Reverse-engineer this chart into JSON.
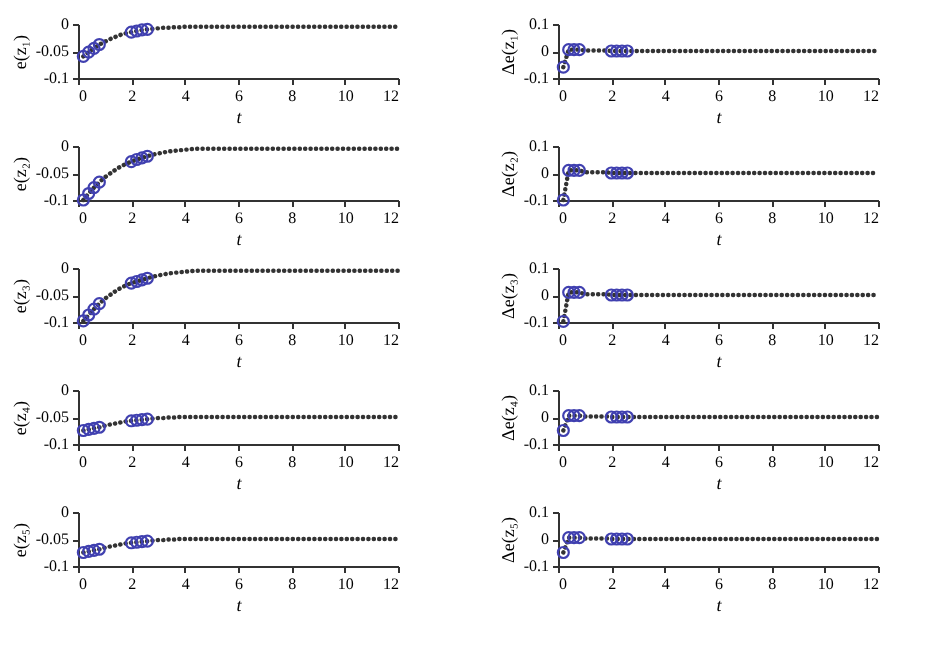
{
  "chart_data": [
    {
      "type": "line",
      "xlabel": "t",
      "ylabel": "e(z₁)",
      "xlim": [
        0,
        12
      ],
      "xticks": [
        0,
        2,
        4,
        6,
        8,
        10,
        12
      ],
      "ylim": [
        -0.1,
        0
      ],
      "yticks": [
        -0.1,
        -0.05,
        0
      ],
      "grid": false,
      "x": [
        0.2,
        0.4,
        0.6,
        0.8,
        1,
        1.2,
        1.4,
        1.6,
        1.8,
        2,
        2.2,
        2.4,
        2.6,
        2.8,
        3,
        3.2,
        3.4,
        3.6,
        3.8,
        4,
        4.2,
        4.4,
        4.6,
        4.8,
        5,
        5.2,
        5.4,
        5.6,
        5.8,
        6,
        6.2,
        6.4,
        6.6,
        6.8,
        7,
        7.2,
        7.4,
        7.6,
        7.8,
        8,
        8.2,
        8.4,
        8.6,
        8.8,
        9,
        9.2,
        9.4,
        9.6,
        9.8,
        10,
        10.2,
        10.4,
        10.6,
        10.8,
        11,
        11.2,
        11.4,
        11.6,
        11.8,
        12
      ],
      "series": [
        {
          "color": "#333333",
          "line_style": "dotted",
          "values": [
            -0.06,
            -0.052,
            -0.045,
            -0.038,
            -0.033,
            -0.028,
            -0.024,
            -0.02,
            -0.017,
            -0.015,
            -0.013,
            -0.011,
            -0.01,
            -0.009,
            -0.008,
            -0.007,
            -0.007,
            -0.006,
            -0.006,
            -0.005,
            -0.005,
            -0.005,
            -0.005,
            -0.005,
            -0.005,
            -0.005,
            -0.005,
            -0.005,
            -0.005,
            -0.005,
            -0.005,
            -0.005,
            -0.005,
            -0.005,
            -0.005,
            -0.005,
            -0.005,
            -0.005,
            -0.005,
            -0.005,
            -0.005,
            -0.005,
            -0.005,
            -0.005,
            -0.005,
            -0.005,
            -0.005,
            -0.005,
            -0.005,
            -0.005,
            -0.005,
            -0.005,
            -0.005,
            -0.005,
            -0.005,
            -0.005,
            -0.005,
            -0.005,
            -0.005,
            -0.005
          ]
        },
        {
          "type": "scatter",
          "color": "#4040b0",
          "marker": "circle",
          "x": [
            0.2,
            0.4,
            0.6,
            0.8,
            2,
            2.2,
            2.4,
            2.6
          ],
          "values": [
            -0.06,
            -0.052,
            -0.045,
            -0.038,
            -0.015,
            -0.013,
            -0.011,
            -0.01
          ]
        }
      ]
    },
    {
      "type": "line",
      "xlabel": "t",
      "ylabel": "Δe(z₁)",
      "xlim": [
        0,
        12
      ],
      "xticks": [
        0,
        2,
        4,
        6,
        8,
        10,
        12
      ],
      "ylim": [
        -0.1,
        0.1
      ],
      "yticks": [
        -0.1,
        0,
        0.1
      ],
      "grid": false,
      "x": [
        0.2,
        0.4,
        0.6,
        0.8,
        1,
        1.2,
        1.4,
        1.6,
        1.8,
        2,
        2.2,
        2.4,
        2.6,
        2.8,
        3,
        3.2,
        3.4,
        3.6,
        3.8,
        4,
        4.2,
        4.4,
        4.6,
        4.8,
        5,
        5.2,
        5.4,
        5.6,
        5.8,
        6,
        6.2,
        6.4,
        6.6,
        6.8,
        7,
        7.2,
        7.4,
        7.6,
        7.8,
        8,
        8.2,
        8.4,
        8.6,
        8.8,
        9,
        9.2,
        9.4,
        9.6,
        9.8,
        10,
        10.2,
        10.4,
        10.6,
        10.8,
        11,
        11.2,
        11.4,
        11.6,
        11.8,
        12
      ],
      "series": [
        {
          "color": "#333333",
          "line_style": "dotted",
          "values": [
            -0.06,
            0.005,
            0.005,
            0.005,
            0.002,
            0.002,
            0.002,
            0.002,
            0.002,
            0,
            0,
            0,
            0,
            0,
            0,
            0,
            0,
            0,
            0,
            0,
            0,
            0,
            0,
            0,
            0,
            0,
            0,
            0,
            0,
            0,
            0,
            0,
            0,
            0,
            0,
            0,
            0,
            0,
            0,
            0,
            0,
            0,
            0,
            0,
            0,
            0,
            0,
            0,
            0,
            0,
            0,
            0,
            0,
            0,
            0,
            0,
            0,
            0,
            0,
            0
          ]
        },
        {
          "type": "scatter",
          "color": "#4040b0",
          "marker": "circle",
          "x": [
            0.2,
            0.4,
            0.6,
            0.8,
            2,
            2.2,
            2.4,
            2.6
          ],
          "values": [
            -0.06,
            0.005,
            0.005,
            0.005,
            0,
            0,
            0,
            0
          ]
        }
      ]
    },
    {
      "type": "line",
      "xlabel": "t",
      "ylabel": "e(z₂)",
      "xlim": [
        0,
        12
      ],
      "xticks": [
        0,
        2,
        4,
        6,
        8,
        10,
        12
      ],
      "ylim": [
        -0.1,
        0
      ],
      "yticks": [
        -0.1,
        -0.05,
        0
      ],
      "grid": false,
      "x": [
        0.2,
        0.4,
        0.6,
        0.8,
        1,
        1.2,
        1.4,
        1.6,
        1.8,
        2,
        2.2,
        2.4,
        2.6,
        2.8,
        3,
        3.2,
        3.4,
        3.6,
        3.8,
        4,
        4.2,
        4.4,
        4.6,
        4.8,
        5,
        5.2,
        5.4,
        5.6,
        5.8,
        6,
        6.2,
        6.4,
        6.6,
        6.8,
        7,
        7.2,
        7.4,
        7.6,
        7.8,
        8,
        8.2,
        8.4,
        8.6,
        8.8,
        9,
        9.2,
        9.4,
        9.6,
        9.8,
        10,
        10.2,
        10.4,
        10.6,
        10.8,
        11,
        11.2,
        11.4,
        11.6,
        11.8,
        12
      ],
      "series": [
        {
          "color": "#333333",
          "line_style": "dotted",
          "values": [
            -0.1,
            -0.088,
            -0.077,
            -0.067,
            -0.058,
            -0.051,
            -0.044,
            -0.038,
            -0.033,
            -0.029,
            -0.025,
            -0.022,
            -0.019,
            -0.016,
            -0.014,
            -0.012,
            -0.01,
            -0.009,
            -0.008,
            -0.007,
            -0.006,
            -0.005,
            -0.005,
            -0.005,
            -0.005,
            -0.005,
            -0.005,
            -0.005,
            -0.005,
            -0.005,
            -0.005,
            -0.005,
            -0.005,
            -0.005,
            -0.005,
            -0.005,
            -0.005,
            -0.005,
            -0.005,
            -0.005,
            -0.005,
            -0.005,
            -0.005,
            -0.005,
            -0.005,
            -0.005,
            -0.005,
            -0.005,
            -0.005,
            -0.005,
            -0.005,
            -0.005,
            -0.005,
            -0.005,
            -0.005,
            -0.005,
            -0.005,
            -0.005,
            -0.005,
            -0.005
          ]
        },
        {
          "type": "scatter",
          "color": "#4040b0",
          "marker": "circle",
          "x": [
            0.2,
            0.4,
            0.6,
            0.8,
            2,
            2.2,
            2.4,
            2.6
          ],
          "values": [
            -0.1,
            -0.088,
            -0.077,
            -0.067,
            -0.029,
            -0.025,
            -0.022,
            -0.019
          ]
        }
      ]
    },
    {
      "type": "line",
      "xlabel": "t",
      "ylabel": "Δe(z₂)",
      "xlim": [
        0,
        12
      ],
      "xticks": [
        0,
        2,
        4,
        6,
        8,
        10,
        12
      ],
      "ylim": [
        -0.1,
        0.1
      ],
      "yticks": [
        -0.1,
        0,
        0.1
      ],
      "grid": false,
      "x": [
        0.2,
        0.4,
        0.6,
        0.8,
        1,
        1.2,
        1.4,
        1.6,
        1.8,
        2,
        2.2,
        2.4,
        2.6,
        2.8,
        3,
        3.2,
        3.4,
        3.6,
        3.8,
        4,
        4.2,
        4.4,
        4.6,
        4.8,
        5,
        5.2,
        5.4,
        5.6,
        5.8,
        6,
        6.2,
        6.4,
        6.6,
        6.8,
        7,
        7.2,
        7.4,
        7.6,
        7.8,
        8,
        8.2,
        8.4,
        8.6,
        8.8,
        9,
        9.2,
        9.4,
        9.6,
        9.8,
        10,
        10.2,
        10.4,
        10.6,
        10.8,
        11,
        11.2,
        11.4,
        11.6,
        11.8,
        12
      ],
      "series": [
        {
          "color": "#333333",
          "line_style": "dotted",
          "values": [
            -0.1,
            0.01,
            0.01,
            0.01,
            0.003,
            0.003,
            0.003,
            0.003,
            0.003,
            0,
            0,
            0,
            0,
            0,
            0,
            0,
            0,
            0,
            0,
            0,
            0,
            0,
            0,
            0,
            0,
            0,
            0,
            0,
            0,
            0,
            0,
            0,
            0,
            0,
            0,
            0,
            0,
            0,
            0,
            0,
            0,
            0,
            0,
            0,
            0,
            0,
            0,
            0,
            0,
            0,
            0,
            0,
            0,
            0,
            0,
            0,
            0,
            0,
            0,
            0
          ]
        },
        {
          "type": "scatter",
          "color": "#4040b0",
          "marker": "circle",
          "x": [
            0.2,
            0.4,
            0.6,
            0.8,
            2,
            2.2,
            2.4,
            2.6
          ],
          "values": [
            -0.1,
            0.01,
            0.01,
            0.01,
            0,
            0,
            0,
            0
          ]
        }
      ]
    },
    {
      "type": "line",
      "xlabel": "t",
      "ylabel": "e(z₃)",
      "xlim": [
        0,
        12
      ],
      "xticks": [
        0,
        2,
        4,
        6,
        8,
        10,
        12
      ],
      "ylim": [
        -0.1,
        0
      ],
      "yticks": [
        -0.1,
        -0.05,
        0
      ],
      "grid": false,
      "x": [
        0.2,
        0.4,
        0.6,
        0.8,
        1,
        1.2,
        1.4,
        1.6,
        1.8,
        2,
        2.2,
        2.4,
        2.6,
        2.8,
        3,
        3.2,
        3.4,
        3.6,
        3.8,
        4,
        4.2,
        4.4,
        4.6,
        4.8,
        5,
        5.2,
        5.4,
        5.6,
        5.8,
        6,
        6.2,
        6.4,
        6.6,
        6.8,
        7,
        7.2,
        7.4,
        7.6,
        7.8,
        8,
        8.2,
        8.4,
        8.6,
        8.8,
        9,
        9.2,
        9.4,
        9.6,
        9.8,
        10,
        10.2,
        10.4,
        10.6,
        10.8,
        11,
        11.2,
        11.4,
        11.6,
        11.8,
        12
      ],
      "series": [
        {
          "color": "#333333",
          "line_style": "dotted",
          "values": [
            -0.098,
            -0.087,
            -0.076,
            -0.066,
            -0.057,
            -0.05,
            -0.043,
            -0.037,
            -0.032,
            -0.028,
            -0.025,
            -0.022,
            -0.019,
            -0.016,
            -0.014,
            -0.012,
            -0.01,
            -0.009,
            -0.008,
            -0.007,
            -0.006,
            -0.005,
            -0.005,
            -0.005,
            -0.005,
            -0.005,
            -0.005,
            -0.005,
            -0.005,
            -0.005,
            -0.005,
            -0.005,
            -0.005,
            -0.005,
            -0.005,
            -0.005,
            -0.005,
            -0.005,
            -0.005,
            -0.005,
            -0.005,
            -0.005,
            -0.005,
            -0.005,
            -0.005,
            -0.005,
            -0.005,
            -0.005,
            -0.005,
            -0.005,
            -0.005,
            -0.005,
            -0.005,
            -0.005,
            -0.005,
            -0.005,
            -0.005,
            -0.005,
            -0.005,
            -0.005
          ]
        },
        {
          "type": "scatter",
          "color": "#4040b0",
          "marker": "circle",
          "x": [
            0.2,
            0.4,
            0.6,
            0.8,
            2,
            2.2,
            2.4,
            2.6
          ],
          "values": [
            -0.098,
            -0.087,
            -0.076,
            -0.066,
            -0.028,
            -0.025,
            -0.022,
            -0.019
          ]
        }
      ]
    },
    {
      "type": "line",
      "xlabel": "t",
      "ylabel": "Δe(z₃)",
      "xlim": [
        0,
        12
      ],
      "xticks": [
        0,
        2,
        4,
        6,
        8,
        10,
        12
      ],
      "ylim": [
        -0.1,
        0.1
      ],
      "yticks": [
        -0.1,
        0,
        0.1
      ],
      "grid": false,
      "x": [
        0.2,
        0.4,
        0.6,
        0.8,
        1,
        1.2,
        1.4,
        1.6,
        1.8,
        2,
        2.2,
        2.4,
        2.6,
        2.8,
        3,
        3.2,
        3.4,
        3.6,
        3.8,
        4,
        4.2,
        4.4,
        4.6,
        4.8,
        5,
        5.2,
        5.4,
        5.6,
        5.8,
        6,
        6.2,
        6.4,
        6.6,
        6.8,
        7,
        7.2,
        7.4,
        7.6,
        7.8,
        8,
        8.2,
        8.4,
        8.6,
        8.8,
        9,
        9.2,
        9.4,
        9.6,
        9.8,
        10,
        10.2,
        10.4,
        10.6,
        10.8,
        11,
        11.2,
        11.4,
        11.6,
        11.8,
        12
      ],
      "series": [
        {
          "color": "#333333",
          "line_style": "dotted",
          "values": [
            -0.098,
            0.01,
            0.01,
            0.01,
            0.003,
            0.003,
            0.003,
            0.003,
            0.003,
            0,
            0,
            0,
            0,
            0,
            0,
            0,
            0,
            0,
            0,
            0,
            0,
            0,
            0,
            0,
            0,
            0,
            0,
            0,
            0,
            0,
            0,
            0,
            0,
            0,
            0,
            0,
            0,
            0,
            0,
            0,
            0,
            0,
            0,
            0,
            0,
            0,
            0,
            0,
            0,
            0,
            0,
            0,
            0,
            0,
            0,
            0,
            0,
            0,
            0,
            0
          ]
        },
        {
          "type": "scatter",
          "color": "#4040b0",
          "marker": "circle",
          "x": [
            0.2,
            0.4,
            0.6,
            0.8,
            2,
            2.2,
            2.4,
            2.6
          ],
          "values": [
            -0.098,
            0.01,
            0.01,
            0.01,
            0,
            0,
            0,
            0
          ]
        }
      ]
    },
    {
      "type": "line",
      "xlabel": "t",
      "ylabel": "e(z₄)",
      "xlim": [
        0,
        12
      ],
      "xticks": [
        0,
        2,
        4,
        6,
        8,
        10,
        12
      ],
      "ylim": [
        -0.1,
        0
      ],
      "yticks": [
        -0.1,
        -0.05,
        0
      ],
      "grid": false,
      "x": [
        0.2,
        0.4,
        0.6,
        0.8,
        1,
        1.2,
        1.4,
        1.6,
        1.8,
        2,
        2.2,
        2.4,
        2.6,
        2.8,
        3,
        3.2,
        3.4,
        3.6,
        3.8,
        4,
        4.2,
        4.4,
        4.6,
        4.8,
        5,
        5.2,
        5.4,
        5.6,
        5.8,
        6,
        6.2,
        6.4,
        6.6,
        6.8,
        7,
        7.2,
        7.4,
        7.6,
        7.8,
        8,
        8.2,
        8.4,
        8.6,
        8.8,
        9,
        9.2,
        9.4,
        9.6,
        9.8,
        10,
        10.2,
        10.4,
        10.6,
        10.8,
        11,
        11.2,
        11.4,
        11.6,
        11.8,
        12
      ],
      "series": [
        {
          "color": "#333333",
          "line_style": "dotted",
          "values": [
            -0.075,
            -0.073,
            -0.071,
            -0.069,
            -0.066,
            -0.064,
            -0.062,
            -0.06,
            -0.058,
            -0.057,
            -0.056,
            -0.055,
            -0.054,
            -0.053,
            -0.052,
            -0.052,
            -0.051,
            -0.051,
            -0.05,
            -0.05,
            -0.05,
            -0.05,
            -0.05,
            -0.05,
            -0.05,
            -0.05,
            -0.05,
            -0.05,
            -0.05,
            -0.05,
            -0.05,
            -0.05,
            -0.05,
            -0.05,
            -0.05,
            -0.05,
            -0.05,
            -0.05,
            -0.05,
            -0.05,
            -0.05,
            -0.05,
            -0.05,
            -0.05,
            -0.05,
            -0.05,
            -0.05,
            -0.05,
            -0.05,
            -0.05,
            -0.05,
            -0.05,
            -0.05,
            -0.05,
            -0.05,
            -0.05,
            -0.05,
            -0.05,
            -0.05,
            -0.05
          ]
        },
        {
          "type": "scatter",
          "color": "#4040b0",
          "marker": "circle",
          "x": [
            0.2,
            0.4,
            0.6,
            0.8,
            2,
            2.2,
            2.4,
            2.6
          ],
          "values": [
            -0.075,
            -0.073,
            -0.071,
            -0.069,
            -0.057,
            -0.056,
            -0.055,
            -0.054
          ]
        }
      ]
    },
    {
      "type": "line",
      "xlabel": "t",
      "ylabel": "Δe(z₄)",
      "xlim": [
        0,
        12
      ],
      "xticks": [
        0,
        2,
        4,
        6,
        8,
        10,
        12
      ],
      "ylim": [
        -0.1,
        0.1
      ],
      "yticks": [
        -0.1,
        0,
        0.1
      ],
      "grid": false,
      "x": [
        0.2,
        0.4,
        0.6,
        0.8,
        1,
        1.2,
        1.4,
        1.6,
        1.8,
        2,
        2.2,
        2.4,
        2.6,
        2.8,
        3,
        3.2,
        3.4,
        3.6,
        3.8,
        4,
        4.2,
        4.4,
        4.6,
        4.8,
        5,
        5.2,
        5.4,
        5.6,
        5.8,
        6,
        6.2,
        6.4,
        6.6,
        6.8,
        7,
        7.2,
        7.4,
        7.6,
        7.8,
        8,
        8.2,
        8.4,
        8.6,
        8.8,
        9,
        9.2,
        9.4,
        9.6,
        9.8,
        10,
        10.2,
        10.4,
        10.6,
        10.8,
        11,
        11.2,
        11.4,
        11.6,
        11.8,
        12
      ],
      "series": [
        {
          "color": "#333333",
          "line_style": "dotted",
          "values": [
            -0.05,
            0.005,
            0.005,
            0.005,
            0.002,
            0.002,
            0.002,
            0.002,
            0.002,
            0,
            0,
            0,
            0,
            0,
            0,
            0,
            0,
            0,
            0,
            0,
            0,
            0,
            0,
            0,
            0,
            0,
            0,
            0,
            0,
            0,
            0,
            0,
            0,
            0,
            0,
            0,
            0,
            0,
            0,
            0,
            0,
            0,
            0,
            0,
            0,
            0,
            0,
            0,
            0,
            0,
            0,
            0,
            0,
            0,
            0,
            0,
            0,
            0,
            0,
            0
          ]
        },
        {
          "type": "scatter",
          "color": "#4040b0",
          "marker": "circle",
          "x": [
            0.2,
            0.4,
            0.6,
            0.8,
            2,
            2.2,
            2.4,
            2.6
          ],
          "values": [
            -0.05,
            0.005,
            0.005,
            0.005,
            0,
            0,
            0,
            0
          ]
        }
      ]
    },
    {
      "type": "line",
      "xlabel": "t",
      "ylabel": "e(z₅)",
      "xlim": [
        0,
        12
      ],
      "xticks": [
        0,
        2,
        4,
        6,
        8,
        10,
        12
      ],
      "ylim": [
        -0.1,
        0
      ],
      "yticks": [
        -0.1,
        -0.05,
        0
      ],
      "grid": false,
      "x": [
        0.2,
        0.4,
        0.6,
        0.8,
        1,
        1.2,
        1.4,
        1.6,
        1.8,
        2,
        2.2,
        2.4,
        2.6,
        2.8,
        3,
        3.2,
        3.4,
        3.6,
        3.8,
        4,
        4.2,
        4.4,
        4.6,
        4.8,
        5,
        5.2,
        5.4,
        5.6,
        5.8,
        6,
        6.2,
        6.4,
        6.6,
        6.8,
        7,
        7.2,
        7.4,
        7.6,
        7.8,
        8,
        8.2,
        8.4,
        8.6,
        8.8,
        9,
        9.2,
        9.4,
        9.6,
        9.8,
        10,
        10.2,
        10.4,
        10.6,
        10.8,
        11,
        11.2,
        11.4,
        11.6,
        11.8,
        12
      ],
      "series": [
        {
          "color": "#333333",
          "line_style": "dotted",
          "values": [
            -0.075,
            -0.073,
            -0.071,
            -0.069,
            -0.066,
            -0.064,
            -0.062,
            -0.06,
            -0.058,
            -0.057,
            -0.056,
            -0.055,
            -0.054,
            -0.053,
            -0.052,
            -0.052,
            -0.051,
            -0.051,
            -0.05,
            -0.05,
            -0.05,
            -0.05,
            -0.05,
            -0.05,
            -0.05,
            -0.05,
            -0.05,
            -0.05,
            -0.05,
            -0.05,
            -0.05,
            -0.05,
            -0.05,
            -0.05,
            -0.05,
            -0.05,
            -0.05,
            -0.05,
            -0.05,
            -0.05,
            -0.05,
            -0.05,
            -0.05,
            -0.05,
            -0.05,
            -0.05,
            -0.05,
            -0.05,
            -0.05,
            -0.05,
            -0.05,
            -0.05,
            -0.05,
            -0.05,
            -0.05,
            -0.05,
            -0.05,
            -0.05,
            -0.05,
            -0.05
          ]
        },
        {
          "type": "scatter",
          "color": "#4040b0",
          "marker": "circle",
          "x": [
            0.2,
            0.4,
            0.6,
            0.8,
            2,
            2.2,
            2.4,
            2.6
          ],
          "values": [
            -0.075,
            -0.073,
            -0.071,
            -0.069,
            -0.057,
            -0.056,
            -0.055,
            -0.054
          ]
        }
      ]
    },
    {
      "type": "line",
      "xlabel": "t",
      "ylabel": "Δe(z₅)",
      "xlim": [
        0,
        12
      ],
      "xticks": [
        0,
        2,
        4,
        6,
        8,
        10,
        12
      ],
      "ylim": [
        -0.1,
        0.1
      ],
      "yticks": [
        -0.1,
        0,
        0.1
      ],
      "grid": false,
      "x": [
        0.2,
        0.4,
        0.6,
        0.8,
        1,
        1.2,
        1.4,
        1.6,
        1.8,
        2,
        2.2,
        2.4,
        2.6,
        2.8,
        3,
        3.2,
        3.4,
        3.6,
        3.8,
        4,
        4.2,
        4.4,
        4.6,
        4.8,
        5,
        5.2,
        5.4,
        5.6,
        5.8,
        6,
        6.2,
        6.4,
        6.6,
        6.8,
        7,
        7.2,
        7.4,
        7.6,
        7.8,
        8,
        8.2,
        8.4,
        8.6,
        8.8,
        9,
        9.2,
        9.4,
        9.6,
        9.8,
        10,
        10.2,
        10.4,
        10.6,
        10.8,
        11,
        11.2,
        11.4,
        11.6,
        11.8,
        12
      ],
      "series": [
        {
          "color": "#333333",
          "line_style": "dotted",
          "values": [
            -0.05,
            0.005,
            0.005,
            0.005,
            0.002,
            0.002,
            0.002,
            0.002,
            0.002,
            0,
            0,
            0,
            0,
            0,
            0,
            0,
            0,
            0,
            0,
            0,
            0,
            0,
            0,
            0,
            0,
            0,
            0,
            0,
            0,
            0,
            0,
            0,
            0,
            0,
            0,
            0,
            0,
            0,
            0,
            0,
            0,
            0,
            0,
            0,
            0,
            0,
            0,
            0,
            0,
            0,
            0,
            0,
            0,
            0,
            0,
            0,
            0,
            0,
            0,
            0
          ]
        },
        {
          "type": "scatter",
          "color": "#4040b0",
          "marker": "circle",
          "x": [
            0.2,
            0.4,
            0.6,
            0.8,
            2,
            2.2,
            2.4,
            2.6
          ],
          "values": [
            -0.05,
            0.005,
            0.005,
            0.005,
            0,
            0,
            0,
            0
          ]
        }
      ]
    }
  ]
}
